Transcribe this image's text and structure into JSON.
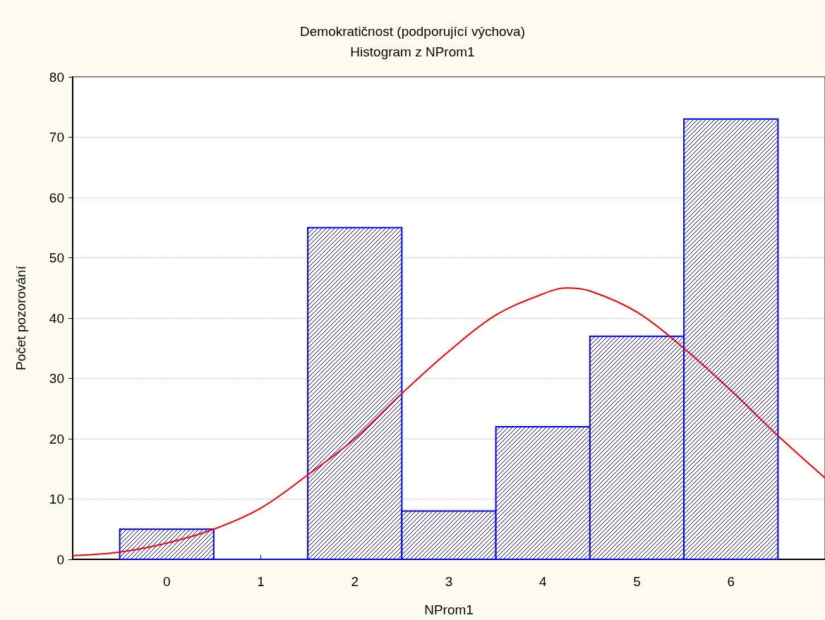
{
  "chart_data": {
    "type": "histogram",
    "title": "Demokratičnost (podporující výchova)",
    "subtitle": "Histogram z NProm1",
    "xlabel": "NProm1",
    "ylabel": "Počet pozorování",
    "bins": [
      -0.5,
      0.5,
      1.5,
      2.5,
      3.5,
      4.5,
      5.5,
      6.5
    ],
    "values": [
      5,
      0,
      55,
      8,
      22,
      37,
      73
    ],
    "color": "#0000ff",
    "series": [
      {
        "type": "line",
        "color": "#ff0000",
        "marker": "none",
        "x": [
          -1,
          -0.5,
          0,
          0.5,
          1,
          1.5,
          2,
          2.5,
          3,
          3.5,
          4,
          4.25,
          4.5,
          5,
          5.5,
          6,
          6.5,
          7
        ],
        "values": [
          0.6,
          1.2,
          2.7,
          5,
          8.5,
          14,
          20,
          27.5,
          34.5,
          40.5,
          44,
          45,
          44.5,
          41,
          35,
          28,
          20.5,
          13.5
        ]
      }
    ],
    "xlim": [
      -1,
      7
    ],
    "xticks": [
      0,
      1,
      2,
      3,
      4,
      5,
      6
    ],
    "ylim": [
      0,
      80
    ],
    "yticks": [
      0,
      10,
      20,
      30,
      40,
      50,
      60,
      70,
      80
    ],
    "grid": "y"
  }
}
